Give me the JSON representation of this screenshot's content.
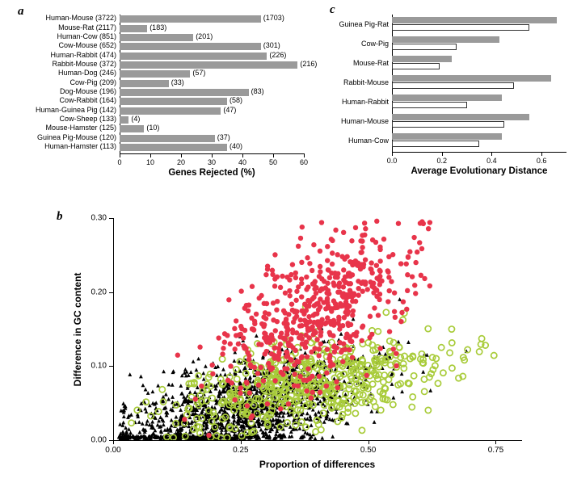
{
  "panel_a": {
    "label": "a",
    "x_title": "Genes Rejected (%)",
    "xlim": [
      0,
      60
    ],
    "xtick_step": 10,
    "bar_color": "#9a9a9a",
    "rows": [
      {
        "label": "Human-Mouse (3722)",
        "pct": 46,
        "value": "(1703)"
      },
      {
        "label": "Mouse-Rat (2117)",
        "pct": 9,
        "value": "(183)"
      },
      {
        "label": "Human-Cow (851)",
        "pct": 24,
        "value": "(201)"
      },
      {
        "label": "Cow-Mouse (652)",
        "pct": 46,
        "value": "(301)"
      },
      {
        "label": "Human-Rabbit (474)",
        "pct": 48,
        "value": "(226)"
      },
      {
        "label": "Rabbit-Mouse (372)",
        "pct": 58,
        "value": "(216)"
      },
      {
        "label": "Human-Dog (246)",
        "pct": 23,
        "value": "(57)"
      },
      {
        "label": "Cow-Pig (209)",
        "pct": 16,
        "value": "(33)"
      },
      {
        "label": "Dog-Mouse (196)",
        "pct": 42,
        "value": "(83)"
      },
      {
        "label": "Cow-Rabbit (164)",
        "pct": 35,
        "value": "(58)"
      },
      {
        "label": "Human-Guinea Pig (142)",
        "pct": 33,
        "value": "(47)"
      },
      {
        "label": "Cow-Sheep (133)",
        "pct": 3,
        "value": "(4)"
      },
      {
        "label": "Mouse-Hamster (125)",
        "pct": 8,
        "value": "(10)"
      },
      {
        "label": "Guinea Pig-Mouse (120)",
        "pct": 31,
        "value": "(37)"
      },
      {
        "label": "Human-Hamster (113)",
        "pct": 35,
        "value": "(40)"
      }
    ]
  },
  "panel_c": {
    "label": "c",
    "x_title": "Average Evolutionary Distance",
    "xlim": [
      0,
      0.7
    ],
    "xticks": [
      0.0,
      0.2,
      0.4,
      0.6
    ],
    "bar1_color": "#9a9a9a",
    "bar2_color": "#ffffff",
    "bar2_border": "#333333",
    "rows": [
      {
        "label": "Guinea Pig-Rat",
        "v1": 0.66,
        "v2": 0.55
      },
      {
        "label": "Cow-Pig",
        "v1": 0.43,
        "v2": 0.26
      },
      {
        "label": "Mouse-Rat",
        "v1": 0.24,
        "v2": 0.19
      },
      {
        "label": "Rabbit-Mouse",
        "v1": 0.64,
        "v2": 0.49
      },
      {
        "label": "Human-Rabbit",
        "v1": 0.44,
        "v2": 0.3
      },
      {
        "label": "Human-Mouse",
        "v1": 0.55,
        "v2": 0.45
      },
      {
        "label": "Human-Cow",
        "v1": 0.44,
        "v2": 0.35
      }
    ]
  },
  "panel_b": {
    "label": "b",
    "x_title": "Proportion of differences",
    "y_title": "Difference in GC content",
    "xlim": [
      0.0,
      0.8
    ],
    "ylim": [
      0.0,
      0.3
    ],
    "xticks": [
      0.0,
      0.25,
      0.5,
      0.75
    ],
    "yticks": [
      0.0,
      0.1,
      0.2,
      0.3
    ],
    "series": [
      {
        "name": "black",
        "color": "#000000",
        "type": "filled-triangle",
        "size": 2.4,
        "n": 1600,
        "cx": 0.25,
        "cy": 0.04,
        "sx": 0.12,
        "sy": 0.032,
        "xmin": 0.01,
        "xmax": 0.72
      },
      {
        "name": "green",
        "color": "#a9cc3b",
        "type": "open-circle",
        "size": 3.6,
        "n": 520,
        "cx": 0.38,
        "cy": 0.075,
        "sx": 0.13,
        "sy": 0.027,
        "xmin": 0.03,
        "xmax": 0.78
      },
      {
        "name": "red",
        "color": "#e8344a",
        "type": "filled-circle",
        "size": 3.2,
        "n": 560,
        "cx": 0.4,
        "cy": 0.17,
        "sx": 0.09,
        "sy": 0.045,
        "xmin": 0.08,
        "xmax": 0.62
      }
    ]
  }
}
